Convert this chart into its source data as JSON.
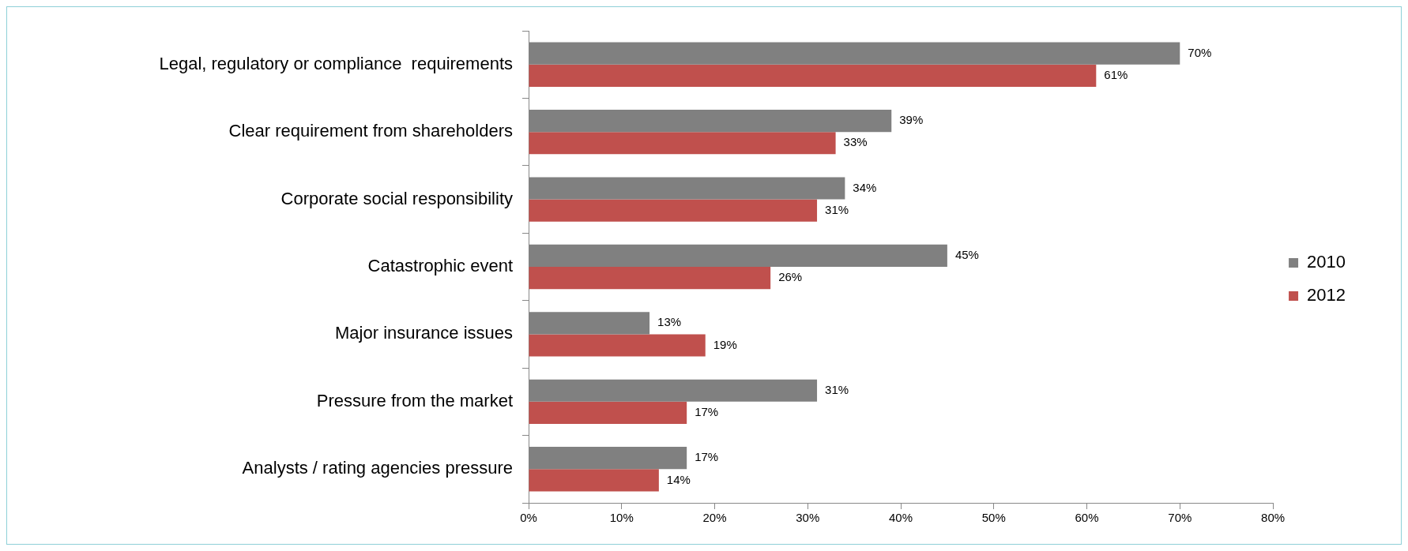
{
  "chart_data": {
    "type": "bar",
    "orientation": "horizontal",
    "categories": [
      "Legal, regulatory or compliance  requirements",
      "Clear requirement from shareholders",
      "Corporate social responsibility",
      "Catastrophic event",
      "Major insurance issues",
      "Pressure from the market",
      "Analysts / rating agencies pressure"
    ],
    "series": [
      {
        "name": "2010",
        "color": "#808080",
        "values": [
          70,
          39,
          34,
          45,
          13,
          31,
          17
        ],
        "value_labels": [
          "70%",
          "39%",
          "34%",
          "45%",
          "13%",
          "31%",
          "17%"
        ]
      },
      {
        "name": "2012",
        "color": "#c0504d",
        "values": [
          61,
          33,
          31,
          26,
          19,
          17,
          14
        ],
        "value_labels": [
          "61%",
          "33%",
          "31%",
          "26%",
          "19%",
          "17%",
          "14%"
        ]
      }
    ],
    "xlim": [
      0,
      80
    ],
    "xticks": [
      {
        "value": 0,
        "label": "0%"
      },
      {
        "value": 10,
        "label": "10%"
      },
      {
        "value": 20,
        "label": "20%"
      },
      {
        "value": 30,
        "label": "30%"
      },
      {
        "value": 40,
        "label": "40%"
      },
      {
        "value": 50,
        "label": "50%"
      },
      {
        "value": 60,
        "label": "60%"
      },
      {
        "value": 70,
        "label": "70%"
      },
      {
        "value": 80,
        "label": "80%"
      }
    ],
    "grid": false,
    "legend": "right"
  }
}
